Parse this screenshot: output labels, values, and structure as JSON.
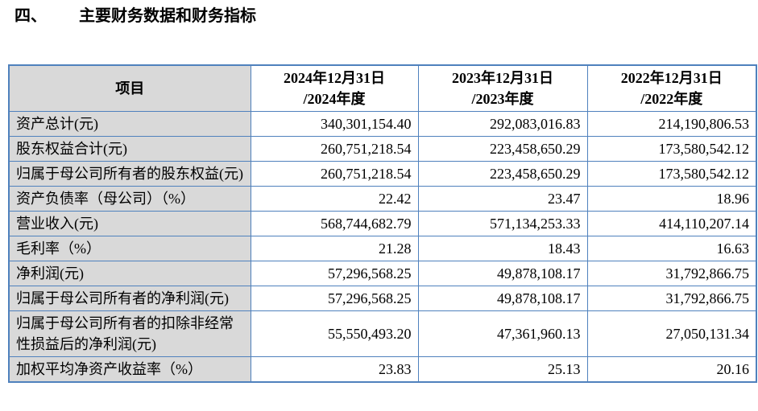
{
  "heading": {
    "number": "四、",
    "title": "主要财务数据和财务指标"
  },
  "colors": {
    "table_border": "#4F81BD",
    "label_column_bg": "#D9D9D9"
  },
  "table": {
    "columns": [
      {
        "line1": "项目",
        "line2": ""
      },
      {
        "line1": "2024年12月31日",
        "line2": "/2024年度"
      },
      {
        "line1": "2023年12月31日",
        "line2": "/2023年度"
      },
      {
        "line1": "2022年12月31日",
        "line2": "/2022年度"
      }
    ],
    "rows": [
      {
        "label": "资产总计(元)",
        "values": [
          "340,301,154.40",
          "292,083,016.83",
          "214,190,806.53"
        ]
      },
      {
        "label": "股东权益合计(元)",
        "values": [
          "260,751,218.54",
          "223,458,650.29",
          "173,580,542.12"
        ]
      },
      {
        "label": "归属于母公司所有者的股东权益(元)",
        "values": [
          "260,751,218.54",
          "223,458,650.29",
          "173,580,542.12"
        ]
      },
      {
        "label": "资产负债率（母公司）（%）",
        "values": [
          "22.42",
          "23.47",
          "18.96"
        ]
      },
      {
        "label": "营业收入(元)",
        "values": [
          "568,744,682.79",
          "571,134,253.33",
          "414,110,207.14"
        ]
      },
      {
        "label": "毛利率（%）",
        "values": [
          "21.28",
          "18.43",
          "16.63"
        ]
      },
      {
        "label": "净利润(元)",
        "values": [
          "57,296,568.25",
          "49,878,108.17",
          "31,792,866.75"
        ]
      },
      {
        "label": "归属于母公司所有者的净利润(元)",
        "values": [
          "57,296,568.25",
          "49,878,108.17",
          "31,792,866.75"
        ]
      },
      {
        "label": "归属于母公司所有者的扣除非经常性损益后的净利润(元)",
        "values": [
          "55,550,493.20",
          "47,361,960.13",
          "27,050,131.34"
        ]
      },
      {
        "label": "加权平均净资产收益率（%）",
        "values": [
          "23.83",
          "25.13",
          "20.16"
        ]
      }
    ]
  }
}
